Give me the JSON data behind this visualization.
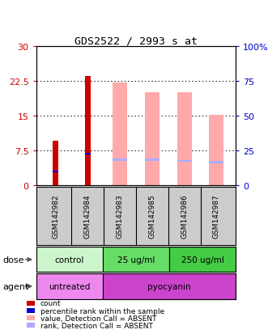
{
  "title": "GDS2522 / 2993_s_at",
  "samples": [
    "GSM142982",
    "GSM142984",
    "GSM142983",
    "GSM142985",
    "GSM142986",
    "GSM142987"
  ],
  "count_values": [
    9.5,
    23.5,
    0,
    0,
    0,
    0
  ],
  "percentile_rank_values": [
    3.0,
    6.8,
    0,
    0,
    0,
    0
  ],
  "value_absent": [
    0,
    0,
    22.2,
    20.0,
    20.0,
    15.2
  ],
  "rank_absent": [
    0,
    0,
    5.5,
    5.5,
    5.2,
    5.0
  ],
  "ylim_left": [
    0,
    30
  ],
  "ylim_right": [
    0,
    100
  ],
  "yticks_left": [
    0,
    7.5,
    15,
    22.5,
    30
  ],
  "yticks_right": [
    0,
    25,
    50,
    75,
    100
  ],
  "ytick_labels_left": [
    "0",
    "7.5",
    "15",
    "22.5",
    "30"
  ],
  "ytick_labels_right": [
    "0",
    "25",
    "50",
    "75",
    "100%"
  ],
  "dose_groups": [
    {
      "label": "control",
      "start": 0,
      "end": 2,
      "color": "#ccf5cc"
    },
    {
      "label": "25 ug/ml",
      "start": 2,
      "end": 4,
      "color": "#66dd66"
    },
    {
      "label": "250 ug/ml",
      "start": 4,
      "end": 6,
      "color": "#44cc44"
    }
  ],
  "agent_groups": [
    {
      "label": "untreated",
      "start": 0,
      "end": 2,
      "color": "#ee88ee"
    },
    {
      "label": "pyocyanin",
      "start": 2,
      "end": 6,
      "color": "#cc44cc"
    }
  ],
  "count_color": "#cc0000",
  "percentile_color": "#0000cc",
  "value_absent_color": "#ffaaaa",
  "rank_absent_color": "#aaaaff",
  "bg_color": "#ffffff",
  "plot_bg_color": "#ffffff",
  "tick_label_color_left": "#cc0000",
  "tick_label_color_right": "#0000cc",
  "sample_label_bg": "#cccccc",
  "legend_items": [
    {
      "color": "#cc0000",
      "label": "count"
    },
    {
      "color": "#0000cc",
      "label": "percentile rank within the sample"
    },
    {
      "color": "#ffaaaa",
      "label": "value, Detection Call = ABSENT"
    },
    {
      "color": "#aaaaff",
      "label": "rank, Detection Call = ABSENT"
    }
  ]
}
